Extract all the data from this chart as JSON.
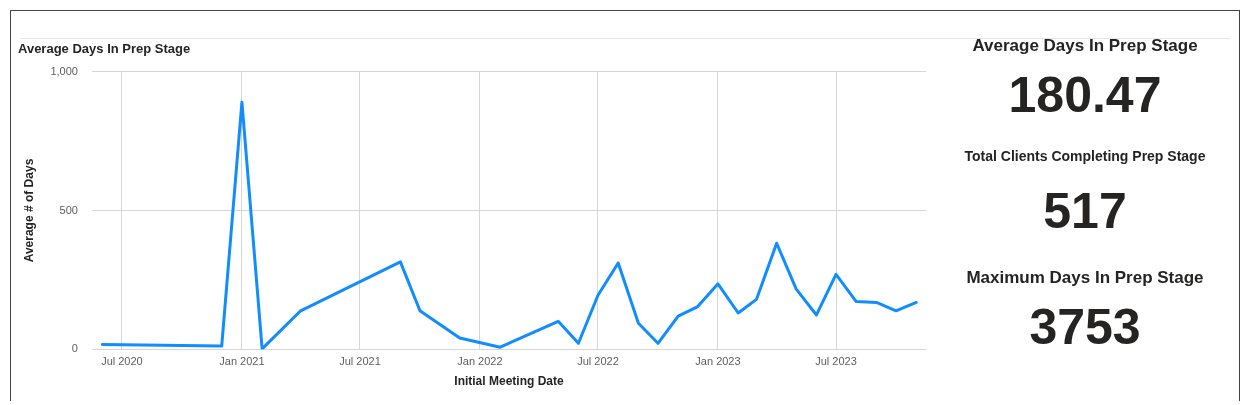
{
  "chart_data": [
    {
      "type": "line",
      "title": "Average Days In Prep Stage",
      "xlabel": "Initial Meeting Date",
      "ylabel": "Average # of Days",
      "x": [
        "2020-06",
        "2020-12",
        "2021-01",
        "2021-02",
        "2021-04",
        "2021-09",
        "2021-10",
        "2021-12",
        "2022-02",
        "2022-05",
        "2022-06",
        "2022-07",
        "2022-08",
        "2022-09",
        "2022-10",
        "2022-11",
        "2022-12",
        "2023-01",
        "2023-02",
        "2023-03",
        "2023-04",
        "2023-05",
        "2023-06",
        "2023-07",
        "2023-08",
        "2023-09",
        "2023-10",
        "2023-11"
      ],
      "series": [
        {
          "color": "#118dff",
          "values": [
            18,
            12,
            890,
            2,
            139,
            315,
            139,
            41,
            8,
            101,
            22,
            195,
            311,
            94,
            22,
            120,
            154,
            236,
            131,
            180,
            382,
            217,
            124,
            270,
            172,
            169,
            139,
            169
          ]
        }
      ],
      "xlim": [
        "2020-05-16",
        "2023-11-16"
      ],
      "xticks": [
        {
          "value": "2020-07-01",
          "label": "Jul 2020"
        },
        {
          "value": "2021-01-01",
          "label": "Jan 2021"
        },
        {
          "value": "2021-07-01",
          "label": "Jul 2021"
        },
        {
          "value": "2022-01-01",
          "label": "Jan 2022"
        },
        {
          "value": "2022-07-01",
          "label": "Jul 2022"
        },
        {
          "value": "2023-01-01",
          "label": "Jan 2023"
        },
        {
          "value": "2023-07-01",
          "label": "Jul 2023"
        }
      ],
      "ylim": [
        0,
        1000
      ],
      "yticks": [
        0,
        500,
        {
          "value": 1000,
          "label": "1,000"
        }
      ],
      "grid": true,
      "legend": false,
      "marker": "none",
      "line_style": "solid"
    },
    {
      "type": "other",
      "title": "Average Days In Prep Stage",
      "annotations": [
        "180.47"
      ]
    },
    {
      "type": "other",
      "title": "Total Clients Completing Prep Stage",
      "annotations": [
        "517"
      ]
    },
    {
      "type": "other",
      "title": "Maximum Days In Prep Stage",
      "annotations": [
        "3753"
      ]
    }
  ]
}
